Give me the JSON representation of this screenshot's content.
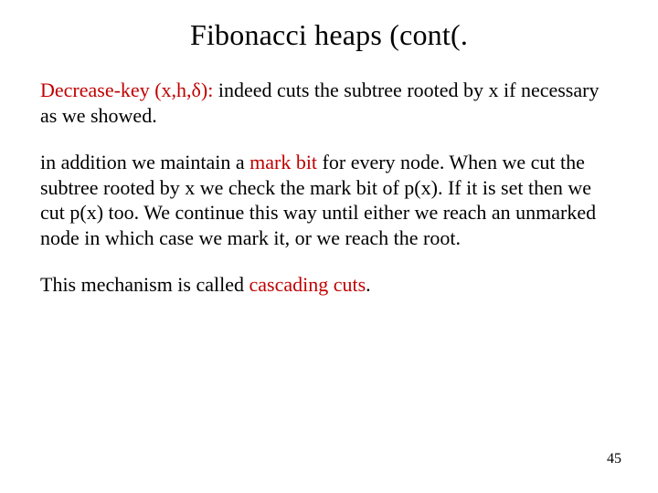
{
  "slide": {
    "title": "Fibonacci heaps (cont(.",
    "p1_lead": "Decrease-key (x,h,δ):",
    "p1_rest": " indeed cuts the subtree rooted by x if necessary as we showed.",
    "p2_a": "in addition we maintain a ",
    "p2_mark": "mark bit",
    "p2_b": " for every node. When we cut the subtree rooted by x we check the mark bit of p(x). If it is set then we cut p(x) too. We continue this way until either we reach an unmarked node in which case we mark it, or we reach the root.",
    "p3_a": "This mechanism is called ",
    "p3_cc": "cascading cuts",
    "p3_b": ".",
    "page_number": "45",
    "colors": {
      "text": "#000000",
      "highlight": "#c00000",
      "background": "#ffffff"
    },
    "font_family": "Times New Roman",
    "title_fontsize": 32,
    "body_fontsize": 22,
    "pagenum_fontsize": 16
  }
}
